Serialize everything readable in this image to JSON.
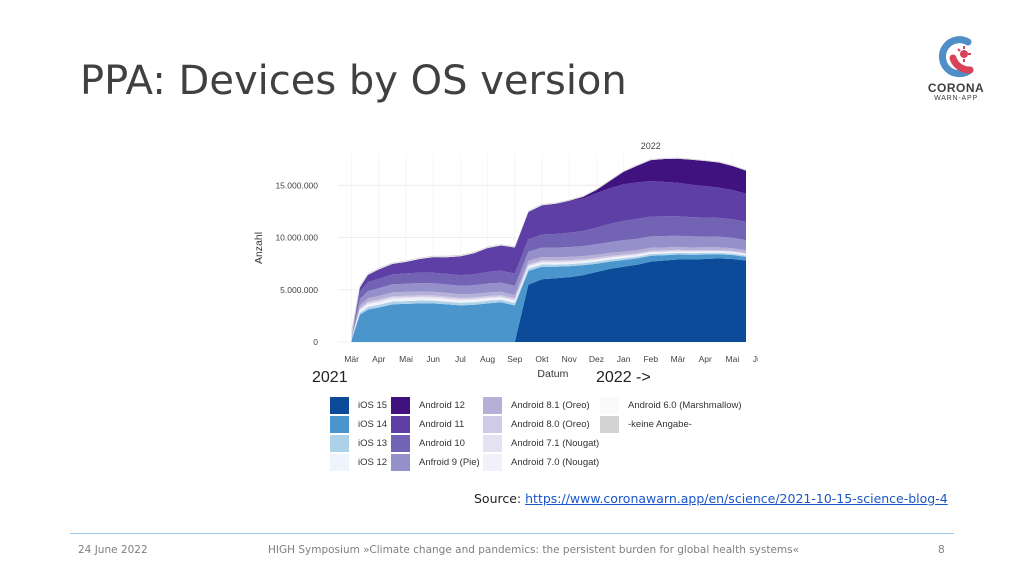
{
  "slide": {
    "title": "PPA: Devices by OS version",
    "source_label": "Source: ",
    "source_link": "https://www.coronawarn.app/en/science/2021-10-15-science-blog-4",
    "footer_date": "24 June 2022",
    "footer_event": "HIGH Symposium »Climate change and pandemics: the persistent burden for global health systems«",
    "page_number": "8"
  },
  "logo": {
    "line1": "CORONA",
    "line2": "WARN-APP",
    "icon": "corona-warn-app-logo-icon"
  },
  "year_labels": {
    "left": "2021",
    "right": "2022 ->"
  },
  "chart_data": {
    "type": "area",
    "title": "2022",
    "xlabel": "Datum",
    "ylabel": "Anzahl",
    "ylim": [
      0,
      18000000
    ],
    "yticks": [
      0,
      5000000,
      10000000,
      15000000
    ],
    "ytick_labels": [
      "0",
      "5.000.000",
      "10.000.000",
      "15.000.000"
    ],
    "xtick_labels": [
      "Mär",
      "Apr",
      "Mai",
      "Jun",
      "Jul",
      "Aug",
      "Sep",
      "Okt",
      "Nov",
      "Dez",
      "Jan",
      "Feb",
      "Mär",
      "Apr",
      "Mai",
      "Jun"
    ],
    "x": [
      0,
      0.3,
      0.6,
      1,
      1.5,
      2,
      2.5,
      3,
      3.5,
      4,
      4.5,
      5,
      5.5,
      6,
      6.5,
      7,
      7.5,
      8,
      8.5,
      9,
      9.5,
      10,
      10.5,
      11,
      11.5,
      12,
      12.5,
      13,
      13.5,
      14,
      14.5
    ],
    "series": [
      {
        "name": "iOS 15",
        "color": "#0c4a9a",
        "values": [
          0,
          0,
          0,
          0,
          0,
          0,
          0,
          0,
          0,
          0,
          0,
          0,
          0,
          0,
          5500000,
          6000000,
          6100000,
          6200000,
          6400000,
          6700000,
          7000000,
          7200000,
          7400000,
          7700000,
          7800000,
          7900000,
          7900000,
          7950000,
          8000000,
          7950000,
          7800000
        ]
      },
      {
        "name": "iOS 14",
        "color": "#4a96cc",
        "values": [
          200000,
          2600000,
          3100000,
          3300000,
          3600000,
          3650000,
          3700000,
          3700000,
          3600000,
          3500000,
          3550000,
          3700000,
          3800000,
          3500000,
          1300000,
          1200000,
          1100000,
          1050000,
          950000,
          800000,
          700000,
          650000,
          600000,
          550000,
          500000,
          480000,
          450000,
          430000,
          400000,
          380000,
          350000
        ]
      },
      {
        "name": "iOS 13",
        "color": "#aed1ea",
        "values": [
          50000,
          200000,
          250000,
          260000,
          270000,
          270000,
          270000,
          265000,
          260000,
          255000,
          250000,
          245000,
          240000,
          230000,
          225000,
          220000,
          210000,
          205000,
          200000,
          195000,
          190000,
          185000,
          180000,
          175000,
          170000,
          165000,
          160000,
          155000,
          150000,
          145000,
          140000
        ]
      },
      {
        "name": "iOS 12",
        "color": "#eef4fb",
        "values": [
          20000,
          80000,
          90000,
          90000,
          90000,
          90000,
          90000,
          85000,
          85000,
          80000,
          80000,
          80000,
          75000,
          75000,
          70000,
          70000,
          65000,
          65000,
          60000,
          60000,
          55000,
          55000,
          50000,
          50000,
          50000,
          45000,
          45000,
          45000,
          40000,
          40000,
          40000
        ]
      },
      {
        "name": "Android 7.0 (Nougat)",
        "color": "#f2f1f9",
        "values": [
          20000,
          150000,
          170000,
          175000,
          180000,
          180000,
          180000,
          175000,
          170000,
          165000,
          160000,
          155000,
          150000,
          145000,
          140000,
          135000,
          130000,
          125000,
          120000,
          115000,
          110000,
          105000,
          100000,
          95000,
          90000,
          85000,
          80000,
          78000,
          75000,
          72000,
          70000
        ]
      },
      {
        "name": "Android 7.1 (Nougat)",
        "color": "#e4e2f2",
        "values": [
          10000,
          80000,
          90000,
          95000,
          95000,
          95000,
          95000,
          90000,
          90000,
          88000,
          86000,
          84000,
          82000,
          80000,
          78000,
          76000,
          74000,
          72000,
          70000,
          68000,
          66000,
          64000,
          62000,
          60000,
          58000,
          56000,
          54000,
          52000,
          50000,
          48000,
          46000
        ]
      },
      {
        "name": "Android 8.0 (Oreo)",
        "color": "#cfcbe6",
        "values": [
          10000,
          120000,
          140000,
          145000,
          150000,
          150000,
          150000,
          148000,
          146000,
          144000,
          142000,
          140000,
          138000,
          135000,
          132000,
          130000,
          128000,
          125000,
          122000,
          120000,
          118000,
          115000,
          112000,
          110000,
          108000,
          105000,
          102000,
          100000,
          98000,
          95000,
          92000
        ]
      },
      {
        "name": "Android 8.1 (Oreo)",
        "color": "#b6b0d8",
        "values": [
          20000,
          280000,
          330000,
          350000,
          360000,
          360000,
          360000,
          355000,
          350000,
          345000,
          340000,
          335000,
          330000,
          325000,
          320000,
          315000,
          310000,
          305000,
          300000,
          295000,
          290000,
          285000,
          280000,
          275000,
          270000,
          265000,
          260000,
          255000,
          250000,
          245000,
          240000
        ]
      },
      {
        "name": "Anfroid 9 (Pie)",
        "color": "#9590c9",
        "values": [
          30000,
          600000,
          700000,
          740000,
          780000,
          790000,
          800000,
          800000,
          800000,
          800000,
          820000,
          860000,
          870000,
          880000,
          890000,
          900000,
          920000,
          940000,
          960000,
          1000000,
          1050000,
          1100000,
          1100000,
          1100000,
          1100000,
          1080000,
          1060000,
          1040000,
          1020000,
          1000000,
          980000
        ]
      },
      {
        "name": "Android 10",
        "color": "#7363b5",
        "values": [
          30000,
          700000,
          850000,
          900000,
          950000,
          980000,
          1000000,
          1010000,
          1020000,
          1030000,
          1060000,
          1100000,
          1150000,
          1180000,
          1200000,
          1250000,
          1300000,
          1380000,
          1450000,
          1600000,
          1750000,
          1850000,
          1900000,
          1900000,
          1880000,
          1860000,
          1840000,
          1820000,
          1800000,
          1780000,
          1750000
        ]
      },
      {
        "name": "Android 11",
        "color": "#5d3fa5",
        "values": [
          20000,
          400000,
          700000,
          900000,
          1000000,
          1100000,
          1300000,
          1500000,
          1600000,
          1800000,
          2000000,
          2300000,
          2400000,
          2500000,
          2600000,
          2800000,
          2900000,
          3000000,
          3100000,
          3300000,
          3400000,
          3500000,
          3500000,
          3400000,
          3300000,
          3200000,
          3100000,
          3000000,
          2900000,
          2800000,
          2700000
        ]
      },
      {
        "name": "Android 12",
        "color": "#40127f",
        "values": [
          0,
          0,
          0,
          0,
          0,
          0,
          0,
          0,
          0,
          0,
          0,
          0,
          0,
          0,
          0,
          0,
          0,
          50000,
          150000,
          300000,
          700000,
          1200000,
          1600000,
          2000000,
          2200000,
          2300000,
          2400000,
          2400000,
          2400000,
          2300000,
          2200000
        ]
      },
      {
        "name": "Android 6.0 (Marshmallow)",
        "color": "#fafafa",
        "values": [
          5000,
          50000,
          50000,
          50000,
          50000,
          50000,
          50000,
          50000,
          50000,
          48000,
          46000,
          44000,
          42000,
          40000,
          38000,
          36000,
          34000,
          32000,
          30000,
          28000,
          26000,
          24000,
          22000,
          20000,
          18000,
          16000,
          15000,
          14000,
          13000,
          12000,
          11000
        ]
      },
      {
        "name": "-keine Angabe-",
        "color": "#d3d3d3",
        "values": [
          800000,
          150000,
          100000,
          90000,
          80000,
          80000,
          80000,
          80000,
          80000,
          80000,
          80000,
          80000,
          80000,
          80000,
          80000,
          80000,
          80000,
          80000,
          80000,
          80000,
          80000,
          80000,
          80000,
          80000,
          80000,
          80000,
          80000,
          80000,
          80000,
          80000,
          80000
        ]
      }
    ]
  }
}
